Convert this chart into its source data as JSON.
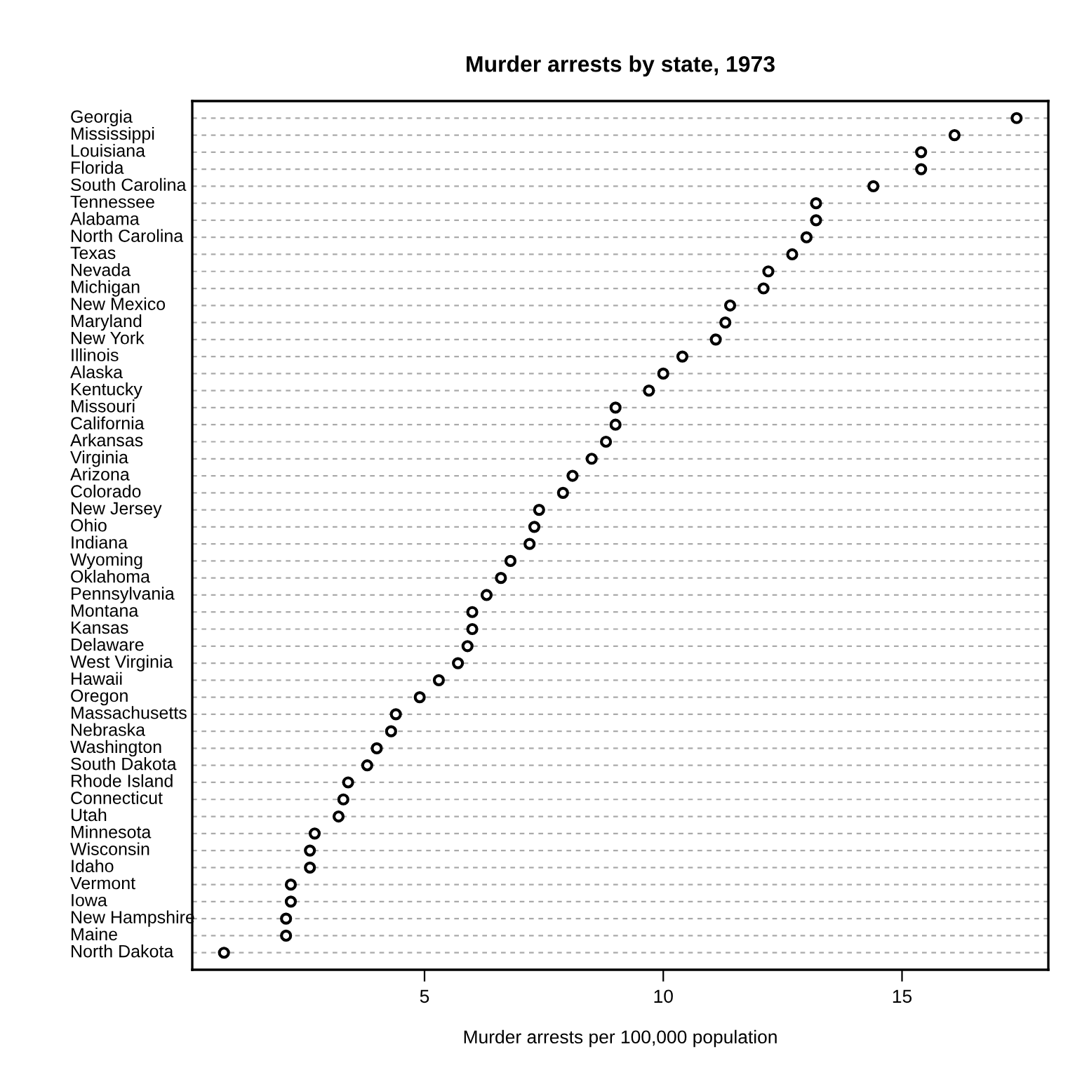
{
  "chart_data": {
    "type": "scatter",
    "title": "Murder arrests by state, 1973",
    "xlabel": "Murder arrests per 100,000 population",
    "orientation": "horizontal",
    "categories": [
      "Georgia",
      "Mississippi",
      "Louisiana",
      "Florida",
      "South Carolina",
      "Tennessee",
      "Alabama",
      "North Carolina",
      "Texas",
      "Nevada",
      "Michigan",
      "New Mexico",
      "Maryland",
      "New York",
      "Illinois",
      "Alaska",
      "Kentucky",
      "Missouri",
      "California",
      "Arkansas",
      "Virginia",
      "Arizona",
      "Colorado",
      "New Jersey",
      "Ohio",
      "Indiana",
      "Wyoming",
      "Oklahoma",
      "Pennsylvania",
      "Montana",
      "Kansas",
      "Delaware",
      "West Virginia",
      "Hawaii",
      "Oregon",
      "Massachusetts",
      "Nebraska",
      "Washington",
      "South Dakota",
      "Rhode Island",
      "Connecticut",
      "Utah",
      "Minnesota",
      "Wisconsin",
      "Idaho",
      "Vermont",
      "Iowa",
      "New Hampshire",
      "Maine",
      "North Dakota"
    ],
    "values": [
      17.4,
      16.1,
      15.4,
      15.4,
      14.4,
      13.2,
      13.2,
      13.0,
      12.7,
      12.2,
      12.1,
      11.4,
      11.3,
      11.1,
      10.4,
      10.0,
      9.7,
      9.0,
      9.0,
      8.8,
      8.5,
      8.1,
      7.9,
      7.4,
      7.3,
      7.2,
      6.8,
      6.6,
      6.3,
      6.0,
      6.0,
      5.9,
      5.7,
      5.3,
      4.9,
      4.4,
      4.3,
      4.0,
      3.8,
      3.4,
      3.3,
      3.2,
      2.7,
      2.6,
      2.6,
      2.2,
      2.2,
      2.1,
      2.1,
      0.8
    ],
    "color": "#000000",
    "marker": "circle",
    "xlim": [
      0.136,
      18.064
    ],
    "xticks": [
      5,
      10,
      15
    ],
    "grid": "y"
  }
}
